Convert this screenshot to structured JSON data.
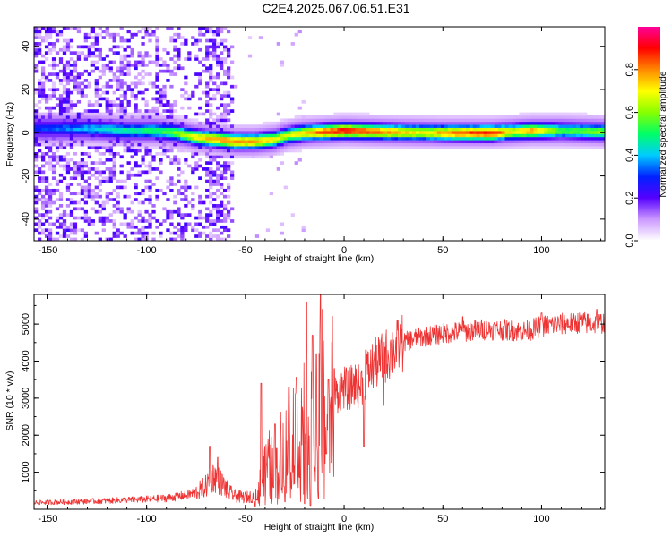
{
  "figure": {
    "title": "C2E4.2025.067.06.51.E31"
  },
  "chart_data": [
    {
      "type": "heatmap",
      "name": "spectrogram",
      "xlabel": "Height of straight line (km)",
      "ylabel": "Frequency (Hz)",
      "xlim": [
        -157,
        132
      ],
      "ylim": [
        -50,
        49
      ],
      "xticks": [
        -150,
        -100,
        -50,
        0,
        50,
        100
      ],
      "yticks": [
        -40,
        -20,
        0,
        20,
        40
      ],
      "colorbar": {
        "label": "Normalized spectral amplitude",
        "range": [
          0.0,
          1.0
        ],
        "ticks": [
          0.0,
          0.2,
          0.4,
          0.6,
          0.8
        ],
        "colors": [
          "#ffffff",
          "#cc99ff",
          "#5500ff",
          "#0022ff",
          "#00ccff",
          "#00ff66",
          "#88ff00",
          "#ffff00",
          "#ff8800",
          "#ff0000",
          "#ff0099"
        ]
      },
      "ridge_frequency": [
        {
          "x": -155,
          "f": 2
        },
        {
          "x": -130,
          "f": 2
        },
        {
          "x": -110,
          "f": 1
        },
        {
          "x": -95,
          "f": 1
        },
        {
          "x": -85,
          "f": 0
        },
        {
          "x": -75,
          "f": -2
        },
        {
          "x": -65,
          "f": -3
        },
        {
          "x": -55,
          "f": -4
        },
        {
          "x": -45,
          "f": -4
        },
        {
          "x": -35,
          "f": -3
        },
        {
          "x": -28,
          "f": -1
        },
        {
          "x": -20,
          "f": 0
        },
        {
          "x": -10,
          "f": 0.5
        },
        {
          "x": 0,
          "f": 1
        },
        {
          "x": 20,
          "f": 0.5
        },
        {
          "x": 50,
          "f": 0
        },
        {
          "x": 75,
          "f": 0
        },
        {
          "x": 95,
          "f": 1
        },
        {
          "x": 110,
          "f": 1
        },
        {
          "x": 130,
          "f": 0.5
        }
      ],
      "ridge_amplitude": [
        {
          "x": -155,
          "a": 0.3
        },
        {
          "x": -140,
          "a": 0.35
        },
        {
          "x": -120,
          "a": 0.45
        },
        {
          "x": -100,
          "a": 0.5
        },
        {
          "x": -90,
          "a": 0.55
        },
        {
          "x": -80,
          "a": 0.65
        },
        {
          "x": -70,
          "a": 0.75
        },
        {
          "x": -60,
          "a": 0.8
        },
        {
          "x": -50,
          "a": 0.8
        },
        {
          "x": -40,
          "a": 0.75
        },
        {
          "x": -30,
          "a": 0.65
        },
        {
          "x": -20,
          "a": 0.75
        },
        {
          "x": -10,
          "a": 0.85
        },
        {
          "x": 0,
          "a": 0.9
        },
        {
          "x": 20,
          "a": 0.8
        },
        {
          "x": 40,
          "a": 0.7
        },
        {
          "x": 60,
          "a": 0.85
        },
        {
          "x": 75,
          "a": 0.9
        },
        {
          "x": 85,
          "a": 0.7
        },
        {
          "x": 95,
          "a": 0.8
        },
        {
          "x": 110,
          "a": 0.55
        },
        {
          "x": 130,
          "a": 0.6
        }
      ],
      "noise_region": {
        "xmin": -157,
        "xmax": -55,
        "density": 0.55
      }
    },
    {
      "type": "line",
      "name": "snr",
      "xlabel": "Height of straight line (km)",
      "ylabel": "SNR (10 * v/v)",
      "xlim": [
        -157,
        132
      ],
      "ylim": [
        0,
        5800
      ],
      "xticks": [
        -150,
        -100,
        -50,
        0,
        50,
        100
      ],
      "yticks": [
        1000,
        2000,
        3000,
        4000,
        5000
      ],
      "color": "#ee3333",
      "x": [
        -157,
        -140,
        -120,
        -100,
        -90,
        -80,
        -75,
        -70,
        -66,
        -62,
        -58,
        -55,
        -50,
        -45,
        -43,
        -40,
        -38,
        -35,
        -32,
        -30,
        -28,
        -25,
        -22,
        -20,
        -18,
        -16,
        -14,
        -12,
        -10,
        -8,
        -6,
        -4,
        -2,
        0,
        2,
        5,
        8,
        10,
        12,
        15,
        18,
        20,
        25,
        30,
        35,
        40,
        45,
        50,
        60,
        70,
        80,
        90,
        95,
        100,
        110,
        120,
        125,
        132
      ],
      "y": [
        180,
        200,
        230,
        270,
        300,
        380,
        450,
        620,
        900,
        700,
        450,
        350,
        320,
        360,
        600,
        1000,
        1300,
        900,
        1600,
        2000,
        1500,
        2400,
        1800,
        2600,
        1500,
        2500,
        1800,
        3200,
        2800,
        3000,
        3200,
        3100,
        3200,
        3300,
        3200,
        3400,
        3300,
        3500,
        3700,
        3900,
        4000,
        4100,
        4300,
        4500,
        4600,
        4650,
        4700,
        4750,
        4800,
        4850,
        4850,
        4800,
        4850,
        4950,
        5000,
        5050,
        5000,
        5050
      ],
      "spikes": [
        {
          "x": -68,
          "y": 1700
        },
        {
          "x": -64,
          "y": 1400
        },
        {
          "x": -42,
          "y": 3400
        },
        {
          "x": -35,
          "y": 2300
        },
        {
          "x": -28,
          "y": 3300
        },
        {
          "x": -24,
          "y": 3500
        },
        {
          "x": -19,
          "y": 5600
        },
        {
          "x": -16,
          "y": 4700
        },
        {
          "x": -14,
          "y": 4200
        },
        {
          "x": -12,
          "y": 5800
        },
        {
          "x": -11,
          "y": 5400
        },
        {
          "x": -8,
          "y": 3500
        },
        {
          "x": -5,
          "y": 3800
        },
        {
          "x": 11,
          "y": 4300
        },
        {
          "x": 20,
          "y": 4700
        },
        {
          "x": 60,
          "y": 5200
        },
        {
          "x": 100,
          "y": 5300
        },
        {
          "x": 128,
          "y": 5400
        }
      ],
      "dips": [
        {
          "x": -45,
          "y": 60
        },
        {
          "x": -30,
          "y": 200
        },
        {
          "x": -20,
          "y": 150
        },
        {
          "x": -17,
          "y": 100
        },
        {
          "x": -13,
          "y": 300
        },
        {
          "x": -9,
          "y": 1500
        },
        {
          "x": 10,
          "y": 1700
        },
        {
          "x": 20,
          "y": 2800
        }
      ]
    }
  ]
}
